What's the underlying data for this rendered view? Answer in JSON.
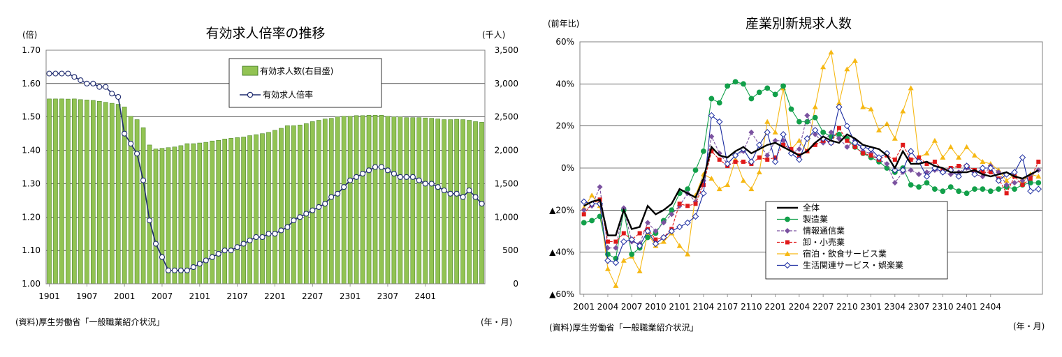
{
  "chart_data": [
    {
      "type": "bar+line",
      "title": "有効求人倍率の推移",
      "y_left_unit": "(倍)",
      "y_right_unit": "(千人)",
      "source": "(資料)厚生労働省「一般職業紹介状況」",
      "x_unit": "(年・月)",
      "ylim_left": [
        1.0,
        1.7
      ],
      "ylim_right": [
        0,
        3500
      ],
      "y_left_ticks": [
        "1.00",
        "1.10",
        "1.20",
        "1.30",
        "1.40",
        "1.50",
        "1.60",
        "1.70"
      ],
      "y_right_ticks": [
        "0",
        "500",
        "1,000",
        "1,500",
        "2,000",
        "2,500",
        "3,000",
        "3,500"
      ],
      "x_tick_labels": [
        "1901",
        "1907",
        "2001",
        "2007",
        "2101",
        "2107",
        "2201",
        "2207",
        "2301",
        "2307",
        "2401"
      ],
      "legend": [
        "有効求人数(右目盛)",
        "有効求人倍率"
      ],
      "series": [
        {
          "name": "有効求人数(右目盛)",
          "kind": "bar",
          "color": "#92c353",
          "values": [
            2770,
            2770,
            2770,
            2768,
            2770,
            2760,
            2755,
            2748,
            2735,
            2720,
            2705,
            2690,
            2650,
            2510,
            2460,
            2340,
            2080,
            2020,
            2030,
            2040,
            2050,
            2070,
            2100,
            2100,
            2110,
            2120,
            2140,
            2150,
            2170,
            2180,
            2190,
            2200,
            2220,
            2235,
            2250,
            2270,
            2300,
            2330,
            2370,
            2370,
            2380,
            2400,
            2430,
            2450,
            2470,
            2480,
            2500,
            2510,
            2510,
            2520,
            2520,
            2525,
            2525,
            2525,
            2510,
            2500,
            2500,
            2490,
            2490,
            2490,
            2485,
            2480,
            2470,
            2460,
            2460,
            2465,
            2460,
            2450,
            2430,
            2420
          ]
        },
        {
          "name": "有効求人倍率",
          "kind": "line",
          "color": "#1f2b6f",
          "values": [
            1.63,
            1.63,
            1.63,
            1.63,
            1.62,
            1.61,
            1.6,
            1.6,
            1.59,
            1.59,
            1.57,
            1.56,
            1.45,
            1.42,
            1.39,
            1.31,
            1.19,
            1.12,
            1.08,
            1.04,
            1.04,
            1.04,
            1.04,
            1.05,
            1.06,
            1.07,
            1.08,
            1.09,
            1.1,
            1.1,
            1.11,
            1.12,
            1.13,
            1.14,
            1.14,
            1.15,
            1.15,
            1.16,
            1.17,
            1.19,
            1.2,
            1.21,
            1.22,
            1.23,
            1.24,
            1.26,
            1.27,
            1.29,
            1.31,
            1.32,
            1.33,
            1.34,
            1.35,
            1.35,
            1.34,
            1.33,
            1.32,
            1.32,
            1.32,
            1.31,
            1.3,
            1.3,
            1.29,
            1.28,
            1.27,
            1.27,
            1.26,
            1.28,
            1.26,
            1.24
          ]
        }
      ]
    },
    {
      "type": "line",
      "title": "産業別新規求人数",
      "y_unit": "(前年比)",
      "source": "(資料)厚生労働省「一般職業紹介状況」",
      "x_unit": "(年・月)",
      "ylim": [
        -60,
        60
      ],
      "y_ticks": [
        "60%",
        "40%",
        "20%",
        "0%",
        "▲20%",
        "▲40%",
        "▲60%"
      ],
      "x_tick_labels": [
        "2001",
        "2004",
        "2007",
        "2010",
        "2101",
        "2104",
        "2107",
        "2110",
        "2201",
        "2204",
        "2207",
        "2210",
        "2301",
        "2304",
        "2307",
        "2310",
        "2401",
        "2404"
      ],
      "series": [
        {
          "name": "全体",
          "color": "#000000",
          "marker": "none",
          "values": [
            -18,
            -16,
            -15,
            -32,
            -32,
            -20,
            -29,
            -28,
            -18,
            -22,
            -20,
            -17,
            -10,
            -12,
            -14,
            -5,
            10,
            6,
            5,
            8,
            10,
            7,
            9,
            11,
            12,
            10,
            8,
            6,
            8,
            12,
            15,
            13,
            12,
            16,
            14,
            11,
            10,
            9,
            6,
            0,
            8,
            2,
            2,
            3,
            1,
            0,
            -2,
            -2,
            -2,
            -1,
            -3,
            -4,
            -3,
            -2,
            -4,
            -5,
            -3,
            -1
          ]
        },
        {
          "name": "製造業",
          "color": "#12a04a",
          "marker": "circle",
          "values": [
            -26,
            -25,
            -23,
            -41,
            -43,
            -20,
            -41,
            -38,
            -33,
            -31,
            -25,
            -20,
            -12,
            -10,
            -1,
            8,
            33,
            31,
            39,
            41,
            40,
            33,
            36,
            38,
            35,
            39,
            28,
            22,
            22,
            24,
            17,
            15,
            16,
            14,
            10,
            7,
            5,
            3,
            0,
            -2,
            0,
            -8,
            -9,
            -7,
            -10,
            -11,
            -9,
            -11,
            -12,
            -10,
            -10,
            -11,
            -10,
            -9,
            -10,
            -8,
            -7,
            -7
          ]
        },
        {
          "name": "情報通信業",
          "color": "#7b52a0",
          "marker": "diamond",
          "values": [
            -20,
            -18,
            -9,
            -38,
            -38,
            -19,
            -35,
            -36,
            -26,
            -30,
            -26,
            -22,
            -18,
            -12,
            -16,
            -6,
            15,
            7,
            2,
            6,
            8,
            17,
            11,
            6,
            13,
            13,
            7,
            9,
            25,
            16,
            12,
            17,
            14,
            10,
            13,
            8,
            7,
            4,
            2,
            -7,
            -2,
            -1,
            -3,
            -2,
            -1,
            -2,
            -3,
            -2,
            0,
            -3,
            -4,
            1,
            -2,
            -8,
            -7,
            -6,
            -4,
            -1
          ]
        },
        {
          "name": "卸・小売業",
          "color": "#e01a1a",
          "marker": "square",
          "values": [
            -22,
            -17,
            -15,
            -35,
            -35,
            -31,
            -34,
            -31,
            -29,
            -34,
            -33,
            -29,
            -17,
            -18,
            -17,
            -8,
            8,
            4,
            1,
            3,
            3,
            2,
            5,
            4,
            5,
            11,
            9,
            6,
            8,
            11,
            13,
            12,
            19,
            13,
            10,
            7,
            6,
            4,
            6,
            4,
            11,
            4,
            5,
            2,
            3,
            -1,
            0,
            1,
            1,
            -1,
            -2,
            -2,
            -5,
            -12,
            -4,
            -8,
            -5,
            3
          ]
        },
        {
          "name": "宿泊・飲食サービス業",
          "color": "#f6b814",
          "marker": "triangle",
          "values": [
            -19,
            -13,
            -18,
            -48,
            -56,
            -44,
            -42,
            -49,
            -31,
            -37,
            -35,
            -31,
            -37,
            -41,
            -13,
            -3,
            -5,
            -10,
            -8,
            4,
            -6,
            -10,
            -2,
            22,
            17,
            38,
            9,
            13,
            8,
            29,
            48,
            55,
            31,
            47,
            51,
            29,
            28,
            18,
            21,
            14,
            27,
            38,
            5,
            7,
            13,
            5,
            10,
            5,
            10,
            6,
            3,
            2,
            -1,
            -6,
            -3,
            -6,
            -3,
            -4
          ]
        },
        {
          "name": "生活関連サービス・娯楽業",
          "color": "#1a2ba0",
          "marker": "diamond-open",
          "values": [
            -16,
            -17,
            -17,
            -44,
            -45,
            -35,
            -34,
            -37,
            -30,
            -36,
            -33,
            -30,
            -28,
            -26,
            -23,
            -12,
            25,
            22,
            2,
            6,
            9,
            3,
            11,
            17,
            3,
            16,
            7,
            4,
            14,
            18,
            14,
            12,
            29,
            20,
            12,
            10,
            9,
            5,
            7,
            -1,
            -1,
            8,
            3,
            -4,
            0,
            -2,
            -1,
            -4,
            1,
            -3,
            0,
            0,
            -6,
            -3,
            -2,
            5,
            -11,
            -10
          ]
        }
      ]
    }
  ]
}
